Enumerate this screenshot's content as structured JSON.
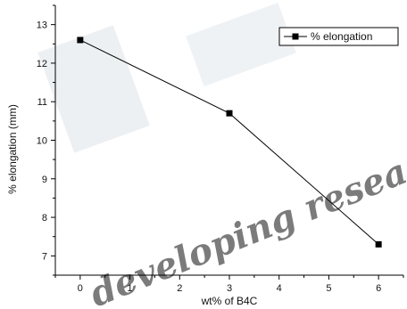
{
  "chart_data": {
    "type": "line",
    "title": "",
    "xlabel": "wt% of B4C",
    "ylabel": "% elongation (mm)",
    "x_ticks": [
      "0",
      "1",
      "2",
      "3",
      "4",
      "5",
      "6"
    ],
    "y_ticks": [
      "7",
      "8",
      "9",
      "10",
      "11",
      "12",
      "13"
    ],
    "xlim": [
      -0.5,
      6.5
    ],
    "ylim": [
      6.5,
      13.5
    ],
    "grid": false,
    "legend_position": "top-right",
    "series": [
      {
        "name": "% elongation",
        "x": [
          0,
          3,
          6
        ],
        "y": [
          12.6,
          10.7,
          7.3
        ],
        "color": "#000000",
        "marker": "square"
      }
    ]
  },
  "watermark": {
    "text": "developing resea",
    "color": "#cfd6dd"
  }
}
